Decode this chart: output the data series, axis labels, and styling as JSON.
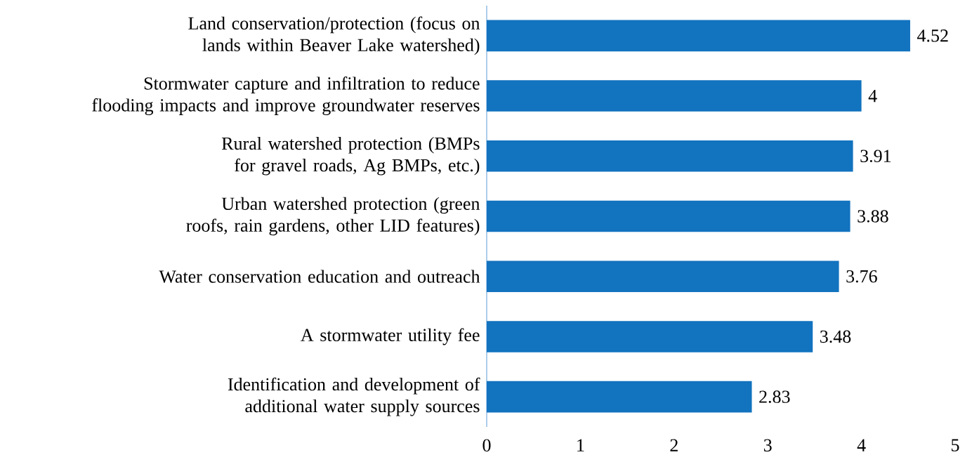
{
  "chart_data": {
    "type": "bar",
    "orientation": "horizontal",
    "categories": [
      "Land conservation/protection (focus on lands within Beaver Lake watershed)",
      "Stormwater capture and infiltration to reduce flooding impacts and improve groundwater reserves",
      "Rural watershed protection (BMPs for gravel roads, Ag BMPs, etc.)",
      "Urban watershed protection (green roofs, rain gardens, other LID features)",
      "Water conservation education and outreach",
      "A stormwater utility fee",
      "Identification and development of additional water supply sources"
    ],
    "values": [
      4.52,
      4,
      3.91,
      3.88,
      3.76,
      3.48,
      2.83
    ],
    "color": "#1273bf",
    "xlim": [
      0,
      5
    ],
    "xticks": [
      0,
      1,
      2,
      3,
      4,
      5
    ],
    "data_labels": true
  }
}
